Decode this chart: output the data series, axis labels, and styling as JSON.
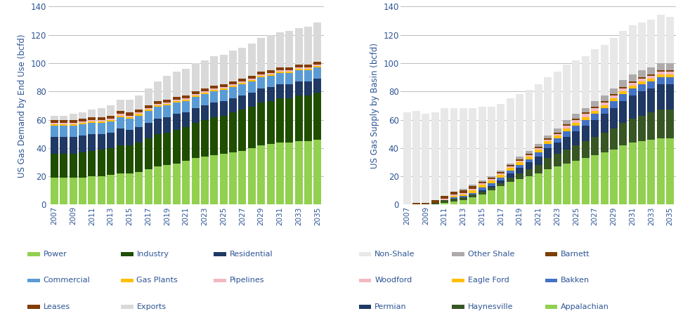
{
  "years": [
    2007,
    2008,
    2009,
    2010,
    2011,
    2012,
    2013,
    2014,
    2015,
    2016,
    2017,
    2018,
    2019,
    2020,
    2021,
    2022,
    2023,
    2024,
    2025,
    2026,
    2027,
    2028,
    2029,
    2030,
    2031,
    2032,
    2033,
    2034,
    2035
  ],
  "demand": {
    "Power": [
      19,
      19,
      19,
      19,
      20,
      20,
      21,
      22,
      22,
      23,
      25,
      27,
      28,
      29,
      31,
      33,
      34,
      35,
      36,
      37,
      38,
      40,
      42,
      43,
      44,
      44,
      45,
      45,
      46
    ],
    "Industry": [
      17,
      17,
      17,
      18,
      18,
      19,
      19,
      20,
      20,
      21,
      22,
      23,
      23,
      24,
      24,
      25,
      26,
      27,
      27,
      28,
      29,
      29,
      30,
      30,
      31,
      31,
      32,
      32,
      33
    ],
    "Residential": [
      12,
      12,
      12,
      12,
      12,
      11,
      11,
      12,
      11,
      11,
      11,
      11,
      11,
      11,
      10,
      10,
      10,
      10,
      10,
      10,
      10,
      10,
      10,
      10,
      10,
      10,
      10,
      10,
      10
    ],
    "Commercial": [
      8,
      8,
      8,
      8,
      8,
      8,
      8,
      8,
      8,
      8,
      8,
      8,
      8,
      8,
      8,
      8,
      8,
      8,
      8,
      8,
      8,
      8,
      8,
      8,
      8,
      8,
      8,
      8,
      8
    ],
    "Gas Plants": [
      1,
      1,
      1,
      1,
      1,
      1,
      1,
      1,
      1,
      1,
      1,
      1,
      1,
      1,
      1,
      1,
      1,
      1,
      1,
      1,
      1,
      1,
      1,
      1,
      1,
      1,
      1,
      1,
      1
    ],
    "Pipelines": [
      1,
      1,
      1,
      1,
      1,
      1,
      1,
      1,
      1,
      1,
      1,
      1,
      1,
      1,
      1,
      1,
      1,
      1,
      1,
      1,
      1,
      1,
      1,
      1,
      1,
      1,
      1,
      1,
      1
    ],
    "Leases": [
      2,
      2,
      2,
      2,
      2,
      2,
      2,
      2,
      2,
      2,
      2,
      2,
      2,
      2,
      2,
      2,
      2,
      2,
      2,
      2,
      2,
      2,
      2,
      2,
      2,
      2,
      2,
      2,
      2
    ],
    "Exports": [
      3,
      3,
      4,
      4,
      5,
      6,
      7,
      8,
      9,
      10,
      12,
      14,
      17,
      18,
      19,
      20,
      20,
      21,
      21,
      22,
      22,
      23,
      24,
      25,
      25,
      26,
      26,
      27,
      28
    ]
  },
  "supply": {
    "Appalachian": [
      0,
      0,
      0,
      0,
      1,
      2,
      3,
      5,
      7,
      10,
      13,
      16,
      18,
      20,
      22,
      25,
      27,
      29,
      31,
      33,
      35,
      37,
      39,
      42,
      44,
      45,
      46,
      47,
      47
    ],
    "Haynesville": [
      0,
      0,
      0,
      1,
      2,
      2,
      2,
      2,
      2,
      2,
      2,
      3,
      4,
      5,
      6,
      8,
      9,
      10,
      11,
      12,
      13,
      14,
      15,
      16,
      17,
      18,
      19,
      20,
      20
    ],
    "Permian": [
      0,
      0,
      0,
      0,
      0,
      0,
      0,
      0,
      1,
      1,
      2,
      3,
      4,
      5,
      6,
      7,
      8,
      9,
      10,
      11,
      12,
      13,
      14,
      15,
      16,
      17,
      17,
      18,
      18
    ],
    "Bakken": [
      0,
      0,
      0,
      0,
      0,
      1,
      1,
      1,
      2,
      2,
      2,
      2,
      2,
      2,
      3,
      3,
      3,
      4,
      4,
      4,
      4,
      4,
      5,
      5,
      5,
      5,
      5,
      5,
      5
    ],
    "Eagle Ford": [
      0,
      0,
      0,
      0,
      0,
      1,
      1,
      2,
      2,
      2,
      2,
      2,
      2,
      2,
      2,
      2,
      2,
      2,
      2,
      2,
      2,
      2,
      2,
      2,
      2,
      2,
      2,
      2,
      2
    ],
    "Woodford": [
      0,
      0,
      0,
      0,
      1,
      1,
      1,
      1,
      1,
      1,
      1,
      1,
      1,
      1,
      1,
      1,
      1,
      2,
      2,
      2,
      2,
      2,
      2,
      2,
      2,
      2,
      2,
      2,
      2
    ],
    "Barnett": [
      0,
      1,
      1,
      2,
      2,
      2,
      2,
      2,
      1,
      1,
      1,
      1,
      1,
      1,
      1,
      1,
      1,
      1,
      1,
      1,
      1,
      1,
      1,
      1,
      1,
      1,
      1,
      1,
      1
    ],
    "Other Shale": [
      0,
      0,
      0,
      0,
      0,
      0,
      1,
      1,
      1,
      1,
      1,
      1,
      2,
      2,
      2,
      2,
      3,
      3,
      3,
      3,
      4,
      4,
      4,
      5,
      5,
      5,
      5,
      5,
      5
    ],
    "Non-Shale": [
      65,
      65,
      63,
      62,
      62,
      59,
      57,
      54,
      52,
      49,
      47,
      46,
      44,
      43,
      42,
      41,
      40,
      39,
      38,
      37,
      37,
      36,
      36,
      35,
      35,
      34,
      34,
      34,
      33
    ]
  },
  "demand_colors": {
    "Power": "#92D050",
    "Industry": "#1F4E00",
    "Residential": "#1F3864",
    "Commercial": "#5B9BD5",
    "Gas Plants": "#FFC000",
    "Pipelines": "#F4B8C1",
    "Leases": "#833C00",
    "Exports": "#D9D9D9"
  },
  "supply_colors": {
    "Appalachian": "#92D050",
    "Haynesville": "#375623",
    "Permian": "#1F3864",
    "Bakken": "#4472C4",
    "Eagle Ford": "#FFC000",
    "Woodford": "#F4B8C1",
    "Barnett": "#7B3F00",
    "Other Shale": "#AEAAAA",
    "Non-Shale": "#E8E8E8"
  },
  "demand_ylabel": "US Gas Demand by End Use (bcfd)",
  "supply_ylabel": "US Gas Supply by Basin (bcfd)",
  "ylim": [
    0,
    140
  ],
  "yticks": [
    0,
    20,
    40,
    60,
    80,
    100,
    120,
    140
  ],
  "text_color": "#2E5594",
  "background_color": "#FFFFFF",
  "legend_left_row1": [
    "Power",
    "Industry",
    "Residential"
  ],
  "legend_left_row2": [
    "Commercial",
    "Gas Plants",
    "Pipelines"
  ],
  "legend_left_row3": [
    "Leases",
    "Exports"
  ],
  "legend_right_row1": [
    "Non-Shale",
    "Other Shale",
    "Barnett"
  ],
  "legend_right_row2": [
    "Woodford",
    "Eagle Ford",
    "Bakken"
  ],
  "legend_right_row3": [
    "Permian",
    "Haynesville",
    "Appalachian"
  ]
}
